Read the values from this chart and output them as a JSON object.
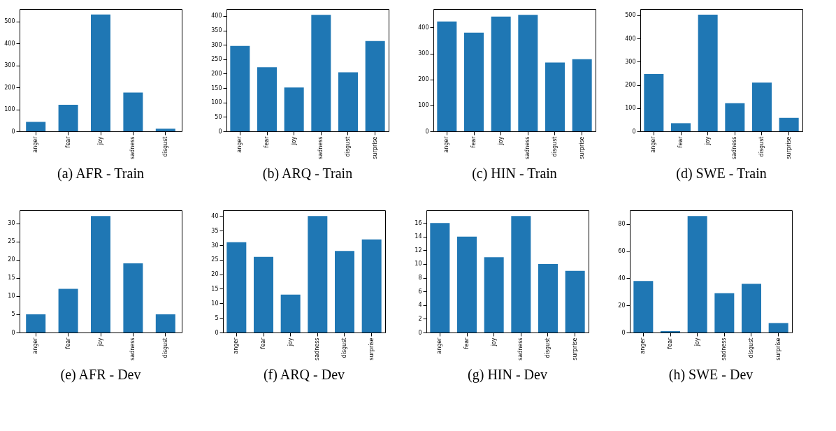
{
  "chart_data": [
    {
      "type": "bar",
      "title": "(a) AFR - Train",
      "categories": [
        "anger",
        "fear",
        "joy",
        "sadness",
        "disgust"
      ],
      "values": [
        43,
        121,
        532,
        177,
        12
      ],
      "color": "#1f77b4",
      "ylim": [
        0,
        557
      ],
      "yticks": [
        0,
        100,
        200,
        300,
        400,
        500
      ],
      "grid": false
    },
    {
      "type": "bar",
      "title": "(b) ARQ - Train",
      "categories": [
        "anger",
        "fear",
        "joy",
        "sadness",
        "disgust",
        "surprise"
      ],
      "values": [
        296,
        222,
        152,
        404,
        205,
        313
      ],
      "color": "#1f77b4",
      "ylim": [
        0,
        424
      ],
      "yticks": [
        0,
        50,
        100,
        150,
        200,
        250,
        300,
        350,
        400
      ],
      "grid": false
    },
    {
      "type": "bar",
      "title": "(c) HIN - Train",
      "categories": [
        "anger",
        "fear",
        "joy",
        "sadness",
        "disgust",
        "surprise"
      ],
      "values": [
        423,
        380,
        442,
        449,
        265,
        278
      ],
      "color": "#1f77b4",
      "ylim": [
        0,
        471
      ],
      "yticks": [
        0,
        100,
        200,
        300,
        400
      ],
      "grid": false
    },
    {
      "type": "bar",
      "title": "(d) SWE - Train",
      "categories": [
        "anger",
        "fear",
        "joy",
        "sadness",
        "disgust",
        "surprise"
      ],
      "values": [
        247,
        35,
        503,
        121,
        210,
        58
      ],
      "color": "#1f77b4",
      "ylim": [
        0,
        527
      ],
      "yticks": [
        0,
        100,
        200,
        300,
        400,
        500
      ],
      "grid": false
    },
    {
      "type": "bar",
      "title": "(e) AFR - Dev",
      "categories": [
        "anger",
        "fear",
        "joy",
        "sadness",
        "disgust"
      ],
      "values": [
        5,
        12,
        32,
        19,
        5
      ],
      "color": "#1f77b4",
      "ylim": [
        0,
        33.6
      ],
      "yticks": [
        0,
        5,
        10,
        15,
        20,
        25,
        30
      ],
      "grid": false
    },
    {
      "type": "bar",
      "title": "(f) ARQ - Dev",
      "categories": [
        "anger",
        "fear",
        "joy",
        "sadness",
        "disgust",
        "surprise"
      ],
      "values": [
        31,
        26,
        13,
        40,
        28,
        32
      ],
      "color": "#1f77b4",
      "ylim": [
        0,
        42
      ],
      "yticks": [
        0,
        5,
        10,
        15,
        20,
        25,
        30,
        35,
        40
      ],
      "grid": false
    },
    {
      "type": "bar",
      "title": "(g) HIN - Dev",
      "categories": [
        "anger",
        "fear",
        "joy",
        "sadness",
        "disgust",
        "surprise"
      ],
      "values": [
        16,
        14,
        11,
        17,
        10,
        9
      ],
      "color": "#1f77b4",
      "ylim": [
        0,
        17.85
      ],
      "yticks": [
        0,
        2,
        4,
        6,
        8,
        10,
        12,
        14,
        16
      ],
      "grid": false
    },
    {
      "type": "bar",
      "title": "(h) SWE - Dev",
      "categories": [
        "anger",
        "fear",
        "joy",
        "sadness",
        "disgust",
        "surprise"
      ],
      "values": [
        38,
        1,
        86,
        29,
        36,
        7
      ],
      "color": "#1f77b4",
      "ylim": [
        0,
        90.3
      ],
      "yticks": [
        0,
        20,
        40,
        60,
        80
      ],
      "grid": false
    }
  ]
}
